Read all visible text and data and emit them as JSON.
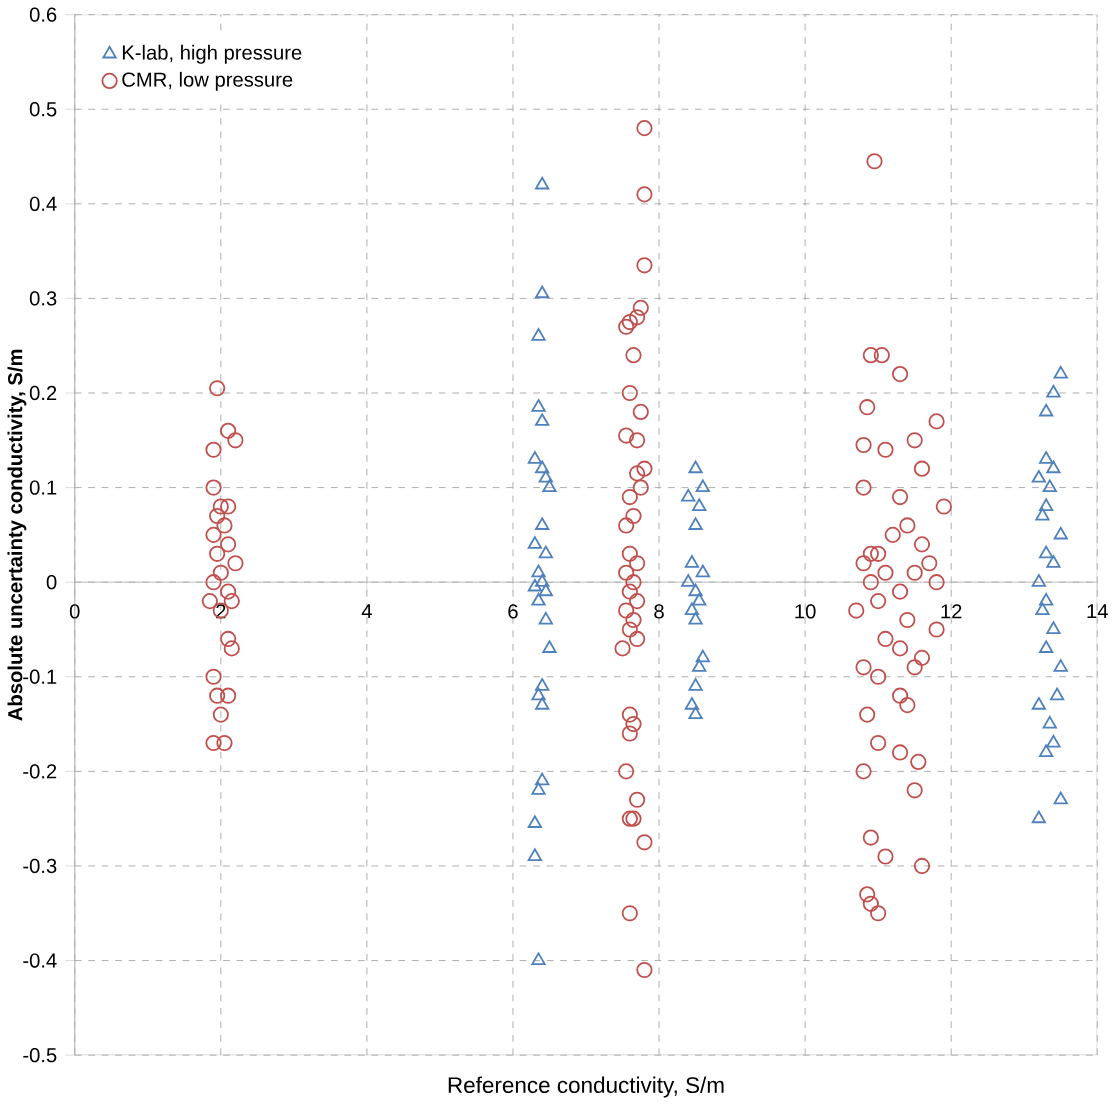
{
  "chart_data": {
    "type": "scatter",
    "xlabel": "Reference conductivity, S/m",
    "ylabel": "Absolute uncertainty conductivity, S/m",
    "xlim": [
      0,
      14
    ],
    "ylim": [
      -0.5,
      0.6
    ],
    "xticks": [
      0,
      2,
      4,
      6,
      8,
      10,
      12,
      14
    ],
    "yticks": [
      -0.5,
      -0.4,
      -0.3,
      -0.2,
      -0.1,
      0,
      0.1,
      0.2,
      0.3,
      0.4,
      0.5,
      0.6
    ],
    "grid": true,
    "legend": "top left",
    "series": [
      {
        "name": "K-lab, high pressure",
        "color": "#4f81bd",
        "marker": "triangle",
        "x": [
          6.4,
          6.4,
          6.35,
          6.35,
          6.4,
          6.3,
          6.4,
          6.45,
          6.5,
          6.4,
          6.3,
          6.45,
          6.35,
          6.4,
          6.3,
          6.45,
          6.35,
          6.45,
          6.5,
          6.4,
          6.35,
          6.4,
          6.4,
          6.35,
          6.3,
          6.3,
          6.35,
          8.5,
          8.6,
          8.4,
          8.55,
          8.5,
          8.45,
          8.6,
          8.4,
          8.5,
          8.55,
          8.45,
          8.5,
          8.6,
          8.55,
          8.5,
          8.45,
          8.5,
          13.5,
          13.4,
          13.3,
          13.3,
          13.4,
          13.2,
          13.35,
          13.3,
          13.25,
          13.5,
          13.3,
          13.4,
          13.2,
          13.3,
          13.25,
          13.4,
          13.3,
          13.5,
          13.45,
          13.2,
          13.35,
          13.4,
          13.3,
          13.5,
          13.2
        ],
        "values": [
          0.42,
          0.305,
          0.26,
          0.185,
          0.17,
          0.13,
          0.12,
          0.11,
          0.1,
          0.06,
          0.04,
          0.03,
          0.01,
          0,
          -0.005,
          -0.01,
          -0.02,
          -0.04,
          -0.07,
          -0.11,
          -0.12,
          -0.13,
          -0.21,
          -0.22,
          -0.255,
          -0.29,
          -0.4,
          0.12,
          0.1,
          0.09,
          0.08,
          0.06,
          0.02,
          0.01,
          0,
          -0.01,
          -0.02,
          -0.03,
          -0.04,
          -0.08,
          -0.09,
          -0.11,
          -0.13,
          -0.14,
          0.22,
          0.2,
          0.18,
          0.13,
          0.12,
          0.11,
          0.1,
          0.08,
          0.07,
          0.05,
          0.03,
          0.02,
          0,
          -0.02,
          -0.03,
          -0.05,
          -0.07,
          -0.09,
          -0.12,
          -0.13,
          -0.15,
          -0.17,
          -0.18,
          -0.23,
          -0.25
        ]
      },
      {
        "name": "CMR, low pressure",
        "color": "#c0504d",
        "marker": "circle",
        "x": [
          1.95,
          2.1,
          2.2,
          1.9,
          1.9,
          2.0,
          2.1,
          1.95,
          2.05,
          1.9,
          2.1,
          1.95,
          2.2,
          2.0,
          1.9,
          2.1,
          1.85,
          2.15,
          2.0,
          2.1,
          2.15,
          1.9,
          1.95,
          2.1,
          2.0,
          1.9,
          2.05,
          7.8,
          7.8,
          7.8,
          7.75,
          7.7,
          7.6,
          7.55,
          7.65,
          7.6,
          7.75,
          7.55,
          7.7,
          7.8,
          7.7,
          7.75,
          7.6,
          7.65,
          7.55,
          7.6,
          7.7,
          7.55,
          7.65,
          7.6,
          7.7,
          7.55,
          7.65,
          7.6,
          7.7,
          7.5,
          7.6,
          7.65,
          7.6,
          7.55,
          7.7,
          7.65,
          7.6,
          7.8,
          7.6,
          7.8,
          10.95,
          10.9,
          11.05,
          11.3,
          10.85,
          11.8,
          11.5,
          10.8,
          11.1,
          11.6,
          10.8,
          11.3,
          11.9,
          11.4,
          11.2,
          11.6,
          10.9,
          11.0,
          11.7,
          10.8,
          11.1,
          11.5,
          10.9,
          11.8,
          11.3,
          11.0,
          10.7,
          11.4,
          11.8,
          11.1,
          11.3,
          11.6,
          11.5,
          10.8,
          11.0,
          11.3,
          11.4,
          10.85,
          11.0,
          11.3,
          11.55,
          10.8,
          11.5,
          10.9,
          11.1,
          11.6,
          10.85,
          10.9,
          11.0
        ],
        "values": [
          0.205,
          0.16,
          0.15,
          0.14,
          0.1,
          0.08,
          0.08,
          0.07,
          0.06,
          0.05,
          0.04,
          0.03,
          0.02,
          0.01,
          0,
          -0.01,
          -0.02,
          -0.02,
          -0.03,
          -0.06,
          -0.07,
          -0.1,
          -0.12,
          -0.12,
          -0.14,
          -0.17,
          -0.17,
          0.48,
          0.41,
          0.335,
          0.29,
          0.28,
          0.275,
          0.27,
          0.24,
          0.2,
          0.18,
          0.155,
          0.15,
          0.12,
          0.115,
          0.1,
          0.09,
          0.07,
          0.06,
          0.03,
          0.02,
          0.01,
          0,
          -0.01,
          -0.02,
          -0.03,
          -0.04,
          -0.05,
          -0.06,
          -0.07,
          -0.14,
          -0.15,
          -0.16,
          -0.2,
          -0.23,
          -0.25,
          -0.25,
          -0.275,
          -0.35,
          -0.41,
          0.445,
          0.24,
          0.24,
          0.22,
          0.185,
          0.17,
          0.15,
          0.145,
          0.14,
          0.12,
          0.1,
          0.09,
          0.08,
          0.06,
          0.05,
          0.04,
          0.03,
          0.03,
          0.02,
          0.02,
          0.01,
          0.01,
          0,
          0,
          -0.01,
          -0.02,
          -0.03,
          -0.04,
          -0.05,
          -0.06,
          -0.07,
          -0.08,
          -0.09,
          -0.09,
          -0.1,
          -0.12,
          -0.13,
          -0.14,
          -0.17,
          -0.18,
          -0.19,
          -0.2,
          -0.22,
          -0.27,
          -0.29,
          -0.3,
          -0.33,
          -0.34,
          -0.35
        ]
      }
    ]
  }
}
